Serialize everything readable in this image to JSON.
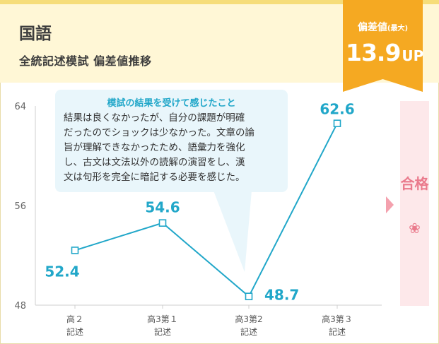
{
  "header": {
    "title": "国語",
    "subtitle": "全統記述模試 偏差値推移"
  },
  "badge": {
    "label": "偏差値",
    "label_suffix": "(最大)",
    "value": "13.9",
    "unit": "UP"
  },
  "callout": {
    "title": "模試の結果を受けて感じたこと",
    "lines": [
      "結果は良くなかったが、自分の課題が明確",
      "だったのでショックは少なかった。文章の論",
      "旨が理解できなかったため、語彙力を強化",
      "し、古文は文法以外の読解の演習をし、漢",
      "文は句形を完全に暗記する必要を感じた。"
    ]
  },
  "pass": {
    "label": "合格",
    "flower": "❀"
  },
  "colors": {
    "line": "#21a7c9",
    "badge": "#f5a922",
    "pass": "#ea7a8c"
  },
  "chart_data": {
    "type": "line",
    "categories": [
      [
        "高２",
        "記述"
      ],
      [
        "高3第１",
        "記述"
      ],
      [
        "高3第2",
        "記述"
      ],
      [
        "高3第３",
        "記述"
      ]
    ],
    "values": [
      52.4,
      54.6,
      48.7,
      62.6
    ],
    "data_labels": [
      "52.4",
      "54.6",
      "48.7",
      "62.6"
    ],
    "yticks": [
      "64",
      "56",
      "48"
    ],
    "ylim": [
      48,
      64
    ],
    "grid": false
  }
}
